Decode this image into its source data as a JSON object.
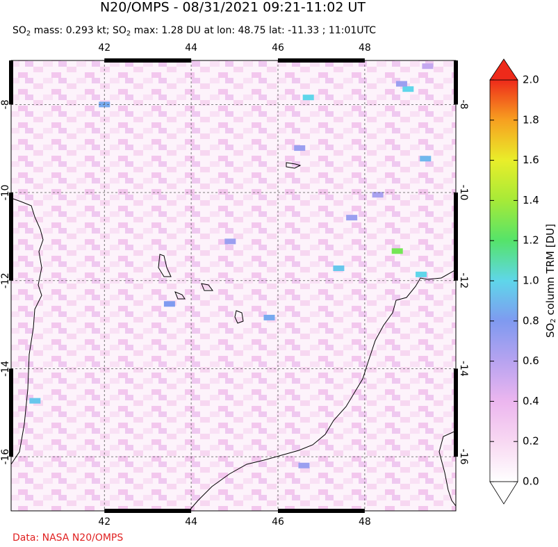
{
  "header": {
    "title": "N20/OMPS - 08/31/2021 09:21-11:02 UT",
    "subtitle": [
      "SO",
      "2",
      " mass: 0.293 kt; SO",
      "2",
      " max: 1.28 DU at lon: 48.75 lat: -11.33 ; 11:01UTC"
    ]
  },
  "chart_data": {
    "type": "map",
    "xlim": [
      39.85,
      50.1
    ],
    "xticks": [
      42,
      44,
      46,
      48
    ],
    "ylim": [
      -17.23,
      -7.0
    ],
    "yticks": [
      -8,
      -10,
      -12,
      -14,
      -16
    ],
    "grid": true,
    "pixels": [
      {
        "lon": 48.75,
        "lat": -11.33,
        "value": 1.28
      },
      {
        "lon": 46.7,
        "lat": -7.84,
        "value": 1.0
      },
      {
        "lon": 49.0,
        "lat": -7.65,
        "value": 1.0
      },
      {
        "lon": 47.4,
        "lat": -11.72,
        "value": 0.95
      },
      {
        "lon": 49.3,
        "lat": -11.86,
        "value": 1.0
      },
      {
        "lon": 49.4,
        "lat": -9.23,
        "value": 0.9
      },
      {
        "lon": 48.85,
        "lat": -7.53,
        "value": 0.7
      },
      {
        "lon": 45.8,
        "lat": -12.84,
        "value": 0.85
      },
      {
        "lon": 42.0,
        "lat": -8.0,
        "value": 0.85
      },
      {
        "lon": 40.4,
        "lat": -14.73,
        "value": 0.95
      },
      {
        "lon": 48.3,
        "lat": -10.05,
        "value": 0.65
      },
      {
        "lon": 49.45,
        "lat": -7.13,
        "value": 0.55
      },
      {
        "lon": 47.7,
        "lat": -10.57,
        "value": 0.7
      },
      {
        "lon": 46.5,
        "lat": -8.99,
        "value": 0.7
      },
      {
        "lon": 43.5,
        "lat": -12.53,
        "value": 0.8
      },
      {
        "lon": 44.9,
        "lat": -11.11,
        "value": 0.7
      },
      {
        "lon": 46.6,
        "lat": -16.2,
        "value": 0.7
      }
    ],
    "colorbar": {
      "label": [
        "SO",
        "2",
        " column TRM [DU]"
      ],
      "lim": [
        0,
        2
      ],
      "ticks": [
        {
          "value": 0,
          "label": "0.0"
        },
        0.2,
        0.4,
        0.6,
        0.8,
        {
          "value": 1,
          "label": "1.0"
        },
        1.2,
        1.4,
        1.6,
        1.8,
        {
          "value": 2,
          "label": "2.0"
        }
      ]
    }
  },
  "footer": {
    "credit": "Data: NASA N20/OMPS"
  }
}
